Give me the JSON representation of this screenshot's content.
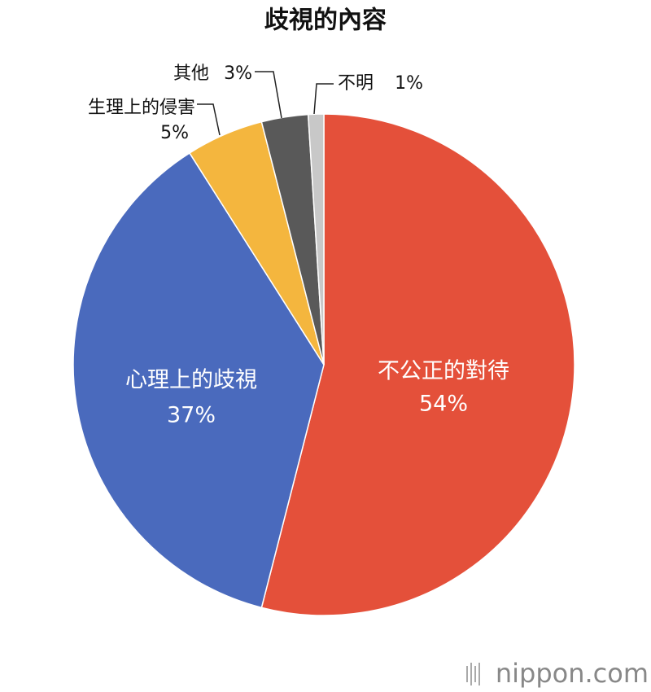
{
  "chart_data": {
    "type": "pie",
    "title": "歧視的內容",
    "categories": [
      "不公正的對待",
      "心理上的歧視",
      "生理上的侵害",
      "其他",
      "不明"
    ],
    "values": [
      54,
      37,
      5,
      3,
      1
    ],
    "value_labels": [
      "54%",
      "37%",
      "5%",
      "3%",
      "1%"
    ],
    "colors": [
      "#e4503a",
      "#4a6abd",
      "#f4b63e",
      "#595959",
      "#c8c8c8"
    ],
    "source": "nippon.com"
  }
}
